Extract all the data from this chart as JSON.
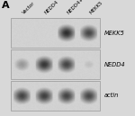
{
  "panel_label": "A",
  "col_labels": [
    "Vector",
    "NEDD4",
    "NEDD4+MEKK5",
    "MEKK5"
  ],
  "row_labels": [
    "MEKK5",
    "NEDD4",
    "actin"
  ],
  "figure_bg": "#d8d8d8",
  "blot_bg": "#d0d0d0",
  "band_data": {
    "MEKK5": [
      0.04,
      0.04,
      0.92,
      0.8
    ],
    "NEDD4": [
      0.45,
      0.88,
      0.82,
      0.28
    ],
    "actin": [
      0.82,
      0.84,
      0.82,
      0.8
    ]
  },
  "label_fontsize": 4.8,
  "panel_fontsize": 8,
  "col_fontsize": 4.0
}
